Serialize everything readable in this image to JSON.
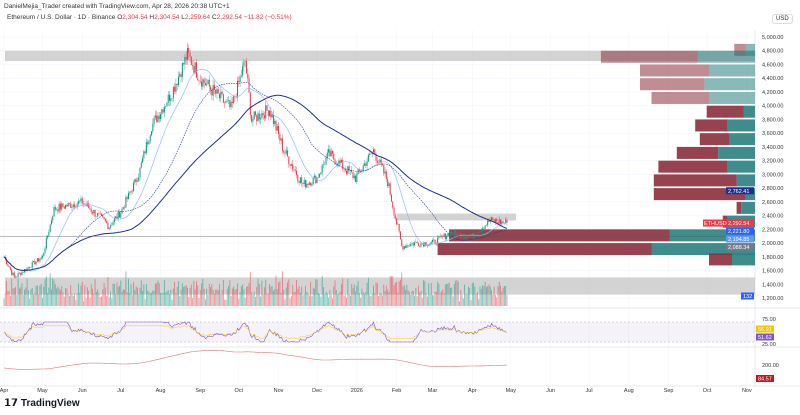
{
  "header": {
    "credit": "DanielMejia_Trader created with TradingView.com, Apr 28, 2026 20:38 UTC+1",
    "symbol": "Ethereum / U.S. Dollar · 1D · Binance",
    "open_label": "O",
    "open": "2,304.54",
    "high_label": "H",
    "high": "2,304.54",
    "low_label": "L",
    "low": "2,259.64",
    "close_label": "C",
    "close": "2,292.54",
    "change": "−11.82 (−0.51%)"
  },
  "currency": "USD",
  "brand": "TradingView",
  "colors": {
    "up": "#089981",
    "down": "#f23645",
    "ma_fast": "#90bff9",
    "ma_slow": "#1e2f8f",
    "vp_up": "#2a7f7f",
    "vp_down": "#8b2f3c",
    "rsi": "#7e57c2",
    "third": "#e57373"
  },
  "chart_data": {
    "type": "candlestick",
    "ylim": [
      1100,
      5100
    ],
    "price_ticks": [
      "5,000.00",
      "4,800.00",
      "4,600.00",
      "4,400.00",
      "4,200.00",
      "4,000.00",
      "3,800.00",
      "3,600.00",
      "3,400.00",
      "3,200.00",
      "3,000.00",
      "2,800.00",
      "2,600.00",
      "2,400.00",
      "2,200.00",
      "2,000.00",
      "1,800.00",
      "1,600.00",
      "1,400.00",
      "1,200.00"
    ],
    "time_ticks": [
      "Apr",
      "May",
      "Jun",
      "Jul",
      "Aug",
      "Sep",
      "Oct",
      "Nov",
      "Dec",
      "2026",
      "Feb",
      "Mar",
      "Apr",
      "May",
      "Jun",
      "Jul",
      "Aug",
      "Sep",
      "Oct",
      "Nov"
    ],
    "path": [
      [
        "2025-04-01",
        1800
      ],
      [
        "2025-04-09",
        1500
      ],
      [
        "2025-05-01",
        1800
      ],
      [
        "2025-05-10",
        2500
      ],
      [
        "2025-06-01",
        2600
      ],
      [
        "2025-06-22",
        2250
      ],
      [
        "2025-07-01",
        2450
      ],
      [
        "2025-07-15",
        3000
      ],
      [
        "2025-07-25",
        3700
      ],
      [
        "2025-08-10",
        4200
      ],
      [
        "2025-08-22",
        4750
      ],
      [
        "2025-09-01",
        4400
      ],
      [
        "2025-09-25",
        3950
      ],
      [
        "2025-10-06",
        4650
      ],
      [
        "2025-10-11",
        3800
      ],
      [
        "2025-10-25",
        3950
      ],
      [
        "2025-11-05",
        3350
      ],
      [
        "2025-11-20",
        2850
      ],
      [
        "2025-12-01",
        2950
      ],
      [
        "2025-12-10",
        3300
      ],
      [
        "2025-12-31",
        2950
      ],
      [
        "2026-01-14",
        3350
      ],
      [
        "2026-01-25",
        2900
      ],
      [
        "2026-02-05",
        1950
      ],
      [
        "2026-02-15",
        2000
      ],
      [
        "2026-03-01",
        2000
      ],
      [
        "2026-03-15",
        2150
      ],
      [
        "2026-04-01",
        2100
      ],
      [
        "2026-04-15",
        2330
      ],
      [
        "2026-04-28",
        2292.54
      ]
    ],
    "volume_profile": [
      [
        4800,
        0.05,
        0.04
      ],
      [
        4700,
        0.42,
        0.25
      ],
      [
        4500,
        0.3,
        0.2
      ],
      [
        4300,
        0.28,
        0.22
      ],
      [
        4100,
        0.25,
        0.2
      ],
      [
        3900,
        0.16,
        0.05
      ],
      [
        3700,
        0.14,
        0.12
      ],
      [
        3500,
        0.13,
        0.11
      ],
      [
        3300,
        0.18,
        0.16
      ],
      [
        3100,
        0.3,
        0.12
      ],
      [
        2900,
        0.36,
        0.08
      ],
      [
        2700,
        0.4,
        0.04
      ],
      [
        2500,
        0.02,
        0.06
      ],
      [
        2300,
        0.02,
        0.12
      ],
      [
        2100,
        0.96,
        0.37
      ],
      [
        1900,
        0.93,
        0.45
      ],
      [
        1750,
        0.1,
        0.1
      ]
    ],
    "zones": [
      [
        4650,
        4800,
        "2025-04-01",
        "2026-11-30"
      ],
      [
        1250,
        1500,
        "2025-04-01",
        "2026-11-30"
      ],
      [
        2330,
        2430,
        "2026-02-01",
        "2026-05-05"
      ]
    ],
    "price_labels": [
      {
        "text": "2,762.41",
        "color": "#1e2f8f",
        "price": 2762
      },
      {
        "text": "2,292.54",
        "color": "#f23645",
        "price": 2292,
        "tag": "ETHUSD"
      },
      {
        "text": "2,221.80",
        "color": "#2962ff",
        "price": 2222
      },
      {
        "text": "2,194.85",
        "color": "#5b9cf6",
        "price": 2160
      },
      {
        "text": "2,088.34",
        "color": "#787b86",
        "price": 2088
      },
      {
        "text": "132",
        "color": "#2962ff",
        "price": 1150
      }
    ],
    "rsi": {
      "ticks": [
        "75.00",
        "25.00"
      ],
      "labels": [
        {
          "text": "56.91",
          "color": "#f7c600"
        },
        {
          "text": "51.62",
          "color": "#7e57c2"
        }
      ]
    },
    "third": {
      "ticks": [
        "200.00"
      ],
      "label": {
        "text": "84.57",
        "color": "#b71c1c"
      }
    }
  }
}
